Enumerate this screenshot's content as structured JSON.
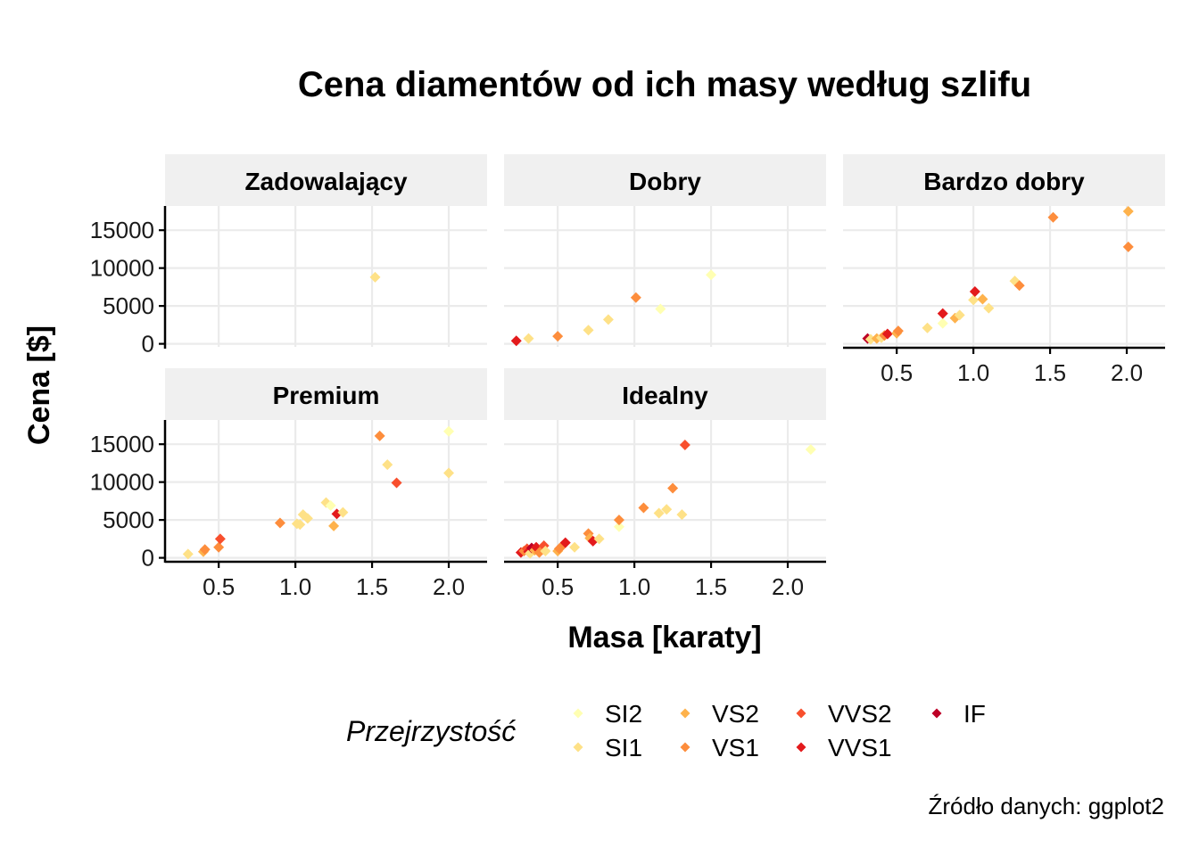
{
  "chart_data": {
    "type": "scatter",
    "title": "Cena diamentów od ich masy według szlifu",
    "xlabel": "Masa [karaty]",
    "ylabel": "Cena [$]",
    "caption": "Źródło danych: ggplot2",
    "xlim": [
      0.15,
      2.25
    ],
    "ylim": [
      -400,
      18200
    ],
    "x_ticks": [
      0.5,
      1.0,
      1.5,
      2.0
    ],
    "x_tick_labels": [
      "0.5",
      "1.0",
      "1.5",
      "2.0"
    ],
    "y_ticks": [
      0,
      5000,
      10000,
      15000
    ],
    "y_tick_labels": [
      "0",
      "5000",
      "10000",
      "15000"
    ],
    "grid": true,
    "legend": {
      "title": "Przejrzystość",
      "position": "bottom",
      "entries": [
        {
          "name": "SI2",
          "color": "#FFFFB2"
        },
        {
          "name": "SI1",
          "color": "#FEE187"
        },
        {
          "name": "VS2",
          "color": "#FEB24C"
        },
        {
          "name": "VS1",
          "color": "#FD8D3C"
        },
        {
          "name": "VVS2",
          "color": "#F84F2D"
        },
        {
          "name": "VVS1",
          "color": "#E31A1C"
        },
        {
          "name": "IF",
          "color": "#BD0026"
        }
      ]
    },
    "facets": [
      {
        "name": "Zadowalający",
        "points": [
          {
            "x": 1.52,
            "y": 8800,
            "clarity": "SI1"
          }
        ]
      },
      {
        "name": "Dobry",
        "points": [
          {
            "x": 0.23,
            "y": 400,
            "clarity": "VVS1"
          },
          {
            "x": 0.31,
            "y": 700,
            "clarity": "SI1"
          },
          {
            "x": 0.5,
            "y": 1000,
            "clarity": "VS1"
          },
          {
            "x": 0.7,
            "y": 1800,
            "clarity": "SI1"
          },
          {
            "x": 0.83,
            "y": 3200,
            "clarity": "SI1"
          },
          {
            "x": 1.01,
            "y": 6100,
            "clarity": "VS1"
          },
          {
            "x": 1.17,
            "y": 4600,
            "clarity": "SI2"
          },
          {
            "x": 1.5,
            "y": 9100,
            "clarity": "SI2"
          }
        ]
      },
      {
        "name": "Bardzo dobry",
        "points": [
          {
            "x": 0.31,
            "y": 700,
            "clarity": "IF"
          },
          {
            "x": 0.33,
            "y": 600,
            "clarity": "SI1"
          },
          {
            "x": 0.37,
            "y": 700,
            "clarity": "VS2"
          },
          {
            "x": 0.4,
            "y": 800,
            "clarity": "SI1"
          },
          {
            "x": 0.42,
            "y": 1100,
            "clarity": "VS1"
          },
          {
            "x": 0.44,
            "y": 1300,
            "clarity": "VVS1"
          },
          {
            "x": 0.5,
            "y": 1400,
            "clarity": "VS2"
          },
          {
            "x": 0.51,
            "y": 1700,
            "clarity": "VS1"
          },
          {
            "x": 0.7,
            "y": 2100,
            "clarity": "SI1"
          },
          {
            "x": 0.8,
            "y": 2700,
            "clarity": "SI2"
          },
          {
            "x": 0.8,
            "y": 4000,
            "clarity": "VVS1"
          },
          {
            "x": 0.88,
            "y": 3400,
            "clarity": "VS2"
          },
          {
            "x": 0.91,
            "y": 3800,
            "clarity": "SI1"
          },
          {
            "x": 1.0,
            "y": 5800,
            "clarity": "SI1"
          },
          {
            "x": 1.01,
            "y": 6900,
            "clarity": "VVS1"
          },
          {
            "x": 1.06,
            "y": 5900,
            "clarity": "VS2"
          },
          {
            "x": 1.1,
            "y": 4700,
            "clarity": "SI1"
          },
          {
            "x": 1.27,
            "y": 8300,
            "clarity": "SI1"
          },
          {
            "x": 1.3,
            "y": 7700,
            "clarity": "VS1"
          },
          {
            "x": 1.52,
            "y": 16700,
            "clarity": "VS1"
          },
          {
            "x": 2.01,
            "y": 12800,
            "clarity": "VS1"
          },
          {
            "x": 2.01,
            "y": 17500,
            "clarity": "VS2"
          }
        ]
      },
      {
        "name": "Premium",
        "points": [
          {
            "x": 0.3,
            "y": 500,
            "clarity": "SI1"
          },
          {
            "x": 0.4,
            "y": 800,
            "clarity": "VS2"
          },
          {
            "x": 0.41,
            "y": 1100,
            "clarity": "VS1"
          },
          {
            "x": 0.5,
            "y": 1400,
            "clarity": "VS1"
          },
          {
            "x": 0.51,
            "y": 2500,
            "clarity": "VVS2"
          },
          {
            "x": 0.9,
            "y": 4600,
            "clarity": "VS1"
          },
          {
            "x": 1.01,
            "y": 4500,
            "clarity": "SI1"
          },
          {
            "x": 1.03,
            "y": 4400,
            "clarity": "SI1"
          },
          {
            "x": 1.05,
            "y": 5700,
            "clarity": "SI1"
          },
          {
            "x": 1.08,
            "y": 5200,
            "clarity": "SI1"
          },
          {
            "x": 1.2,
            "y": 7300,
            "clarity": "SI1"
          },
          {
            "x": 1.23,
            "y": 6900,
            "clarity": "SI2"
          },
          {
            "x": 1.25,
            "y": 4200,
            "clarity": "VS2"
          },
          {
            "x": 1.27,
            "y": 5800,
            "clarity": "VVS1"
          },
          {
            "x": 1.31,
            "y": 6000,
            "clarity": "SI1"
          },
          {
            "x": 1.55,
            "y": 16100,
            "clarity": "VS1"
          },
          {
            "x": 1.6,
            "y": 12300,
            "clarity": "SI1"
          },
          {
            "x": 1.66,
            "y": 9900,
            "clarity": "VVS2"
          },
          {
            "x": 2.0,
            "y": 16700,
            "clarity": "SI2"
          },
          {
            "x": 2.0,
            "y": 11200,
            "clarity": "SI1"
          }
        ]
      },
      {
        "name": "Idealny",
        "points": [
          {
            "x": 0.26,
            "y": 700,
            "clarity": "VVS1"
          },
          {
            "x": 0.28,
            "y": 900,
            "clarity": "VS1"
          },
          {
            "x": 0.3,
            "y": 1200,
            "clarity": "VVS2"
          },
          {
            "x": 0.31,
            "y": 800,
            "clarity": "VVS1"
          },
          {
            "x": 0.32,
            "y": 600,
            "clarity": "SI1"
          },
          {
            "x": 0.33,
            "y": 1300,
            "clarity": "IF"
          },
          {
            "x": 0.35,
            "y": 1000,
            "clarity": "VS2"
          },
          {
            "x": 0.36,
            "y": 1400,
            "clarity": "VVS1"
          },
          {
            "x": 0.38,
            "y": 700,
            "clarity": "VS1"
          },
          {
            "x": 0.4,
            "y": 1100,
            "clarity": "VS1"
          },
          {
            "x": 0.41,
            "y": 1600,
            "clarity": "VVS2"
          },
          {
            "x": 0.42,
            "y": 900,
            "clarity": "SI1"
          },
          {
            "x": 0.5,
            "y": 900,
            "clarity": "VS2"
          },
          {
            "x": 0.51,
            "y": 1200,
            "clarity": "VS1"
          },
          {
            "x": 0.53,
            "y": 1600,
            "clarity": "VS1"
          },
          {
            "x": 0.55,
            "y": 2000,
            "clarity": "VVS1"
          },
          {
            "x": 0.61,
            "y": 1400,
            "clarity": "SI1"
          },
          {
            "x": 0.7,
            "y": 3200,
            "clarity": "VS1"
          },
          {
            "x": 0.71,
            "y": 2600,
            "clarity": "VS2"
          },
          {
            "x": 0.73,
            "y": 2200,
            "clarity": "VVS1"
          },
          {
            "x": 0.77,
            "y": 2500,
            "clarity": "SI1"
          },
          {
            "x": 0.9,
            "y": 4100,
            "clarity": "SI2"
          },
          {
            "x": 0.9,
            "y": 5000,
            "clarity": "VS1"
          },
          {
            "x": 1.06,
            "y": 6600,
            "clarity": "VS1"
          },
          {
            "x": 1.16,
            "y": 5900,
            "clarity": "SI1"
          },
          {
            "x": 1.21,
            "y": 6400,
            "clarity": "SI1"
          },
          {
            "x": 1.25,
            "y": 9200,
            "clarity": "VS1"
          },
          {
            "x": 1.31,
            "y": 5700,
            "clarity": "SI1"
          },
          {
            "x": 1.33,
            "y": 14900,
            "clarity": "VVS2"
          },
          {
            "x": 2.15,
            "y": 14300,
            "clarity": "SI2"
          }
        ]
      }
    ]
  }
}
